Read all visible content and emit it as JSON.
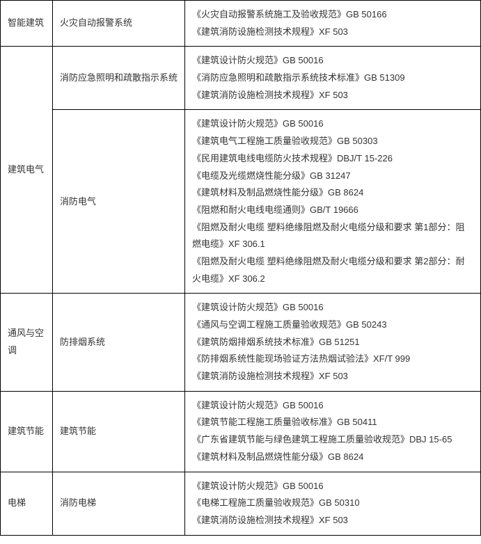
{
  "table": {
    "columns": [
      "col1",
      "col2",
      "col3"
    ],
    "column_widths": [
      "75px",
      "190px",
      "auto"
    ],
    "border_color": "#000000",
    "text_color": "#333333",
    "background_color": "#ffffff",
    "font_size": 13,
    "line_height": 1.9,
    "rows": [
      {
        "col1": "智能建筑",
        "col2": "火灾自动报警系统",
        "col3_lines": [
          "《火灾自动报警系统施工及验收规范》GB 50166",
          "《建筑消防设施检测技术规程》XF 503"
        ]
      },
      {
        "col1": "建筑电气",
        "col1_rowspan": 2,
        "col2": "消防应急照明和疏散指示系统",
        "col3_lines": [
          "《建筑设计防火规范》GB 50016",
          "《消防应急照明和疏散指示系统技术标准》GB 51309",
          "《建筑消防设施检测技术规程》XF 503"
        ]
      },
      {
        "col2": "消防电气",
        "col3_lines": [
          "《建筑设计防火规范》GB 50016",
          "《建筑电气工程施工质量验收规范》GB 50303",
          "《民用建筑电线电缆防火技术规程》DBJ/T 15-226",
          "《电缆及光缆燃烧性能分级》GB 31247",
          "《建筑材料及制品燃烧性能分级》GB 8624",
          "《阻燃和耐火电线电缆通则》GB/T 19666",
          "《阻燃及耐火电缆 塑料绝缘阻燃及耐火电缆分级和要求 第1部分：阻燃电缆》XF 306.1",
          "《阻燃及耐火电缆 塑料绝缘阻燃及耐火电缆分级和要求 第2部分：耐火电缆》XF 306.2"
        ]
      },
      {
        "col1": "通风与空调",
        "col2": "防排烟系统",
        "col3_lines": [
          "《建筑设计防火规范》GB 50016",
          "《通风与空调工程施工质量验收规范》GB 50243",
          "《建筑防烟排烟系统技术标准》GB 51251",
          "《防排烟系统性能现场验证方法热烟试验法》XF/T 999",
          "《建筑消防设施检测技术规程》XF 503"
        ]
      },
      {
        "col1": "建筑节能",
        "col2": "建筑节能",
        "col3_lines": [
          "《建筑设计防火规范》GB 50016",
          "《建筑节能工程施工质量验收标准》GB 50411",
          "《广东省建筑节能与绿色建筑工程施工质量验收规范》DBJ 15-65",
          "《建筑材料及制品燃烧性能分级》GB 8624"
        ]
      },
      {
        "col1": "电梯",
        "col2": "消防电梯",
        "col3_lines": [
          "《建筑设计防火规范》GB 50016",
          "《电梯工程施工质量验收规范》GB 50310",
          "《建筑消防设施检测技术规程》XF 503"
        ]
      }
    ]
  }
}
